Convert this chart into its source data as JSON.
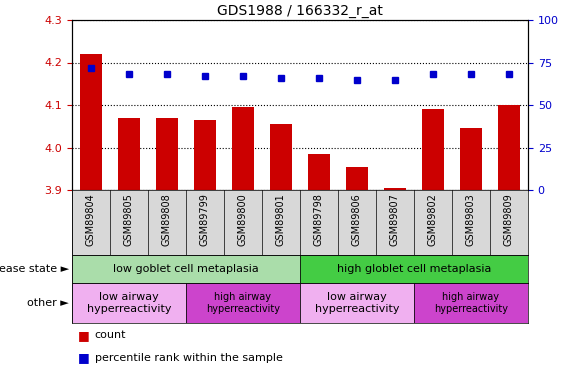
{
  "title": "GDS1988 / 166332_r_at",
  "samples": [
    "GSM89804",
    "GSM89805",
    "GSM89808",
    "GSM89799",
    "GSM89800",
    "GSM89801",
    "GSM89798",
    "GSM89806",
    "GSM89807",
    "GSM89802",
    "GSM89803",
    "GSM89809"
  ],
  "bar_values": [
    4.22,
    4.07,
    4.07,
    4.065,
    4.095,
    4.055,
    3.985,
    3.955,
    3.905,
    4.09,
    4.045,
    4.1
  ],
  "dot_values": [
    72,
    68,
    68,
    67,
    67,
    66,
    66,
    65,
    65,
    68,
    68,
    68
  ],
  "ylim_left": [
    3.9,
    4.3
  ],
  "ylim_right": [
    0,
    100
  ],
  "yticks_left": [
    3.9,
    4.0,
    4.1,
    4.2,
    4.3
  ],
  "yticks_right": [
    0,
    25,
    50,
    75,
    100
  ],
  "bar_color": "#cc0000",
  "dot_color": "#0000cc",
  "bar_bottom": 3.9,
  "disease_state_row": [
    {
      "label": "low goblet cell metaplasia",
      "color": "#aaddaa",
      "span": [
        0,
        6
      ]
    },
    {
      "label": "high globlet cell metaplasia",
      "color": "#44cc44",
      "span": [
        6,
        12
      ]
    }
  ],
  "other_row": [
    {
      "label": "low airway\nhyperreactivity",
      "color": "#f0b0f0",
      "span": [
        0,
        3
      ],
      "fontsize": 8
    },
    {
      "label": "high airway\nhyperreactivity",
      "color": "#cc44cc",
      "span": [
        3,
        6
      ],
      "fontsize": 7
    },
    {
      "label": "low airway\nhyperreactivity",
      "color": "#f0b0f0",
      "span": [
        6,
        9
      ],
      "fontsize": 8
    },
    {
      "label": "high airway\nhyperreactivity",
      "color": "#cc44cc",
      "span": [
        9,
        12
      ],
      "fontsize": 7
    }
  ],
  "xtick_bg_color": "#d8d8d8",
  "legend_items": [
    {
      "color": "#cc0000",
      "label": "count"
    },
    {
      "color": "#0000cc",
      "label": "percentile rank within the sample"
    }
  ]
}
